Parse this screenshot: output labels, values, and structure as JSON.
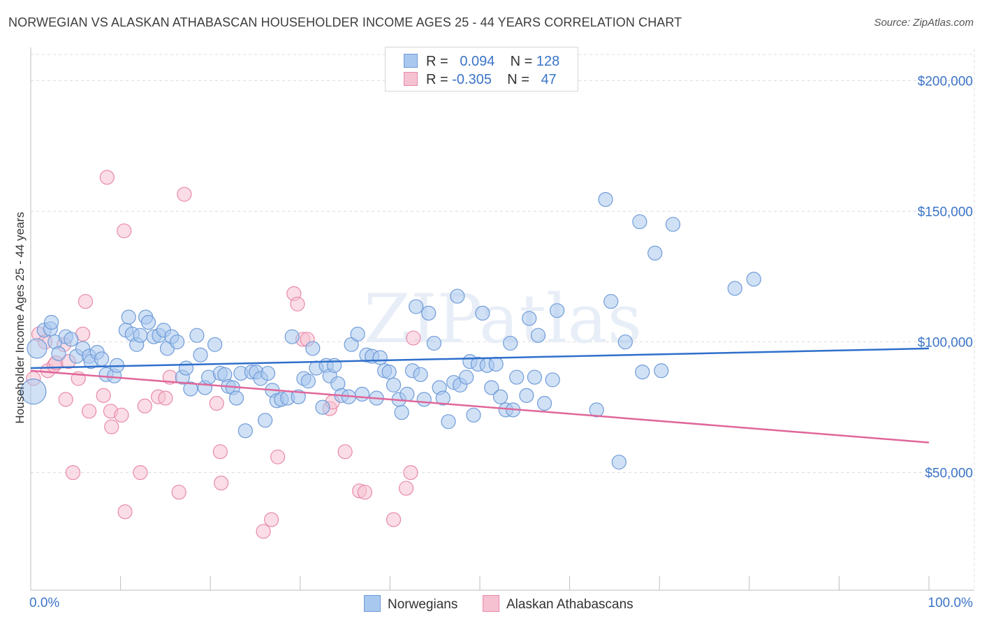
{
  "header": {
    "title": "NORWEGIAN VS ALASKAN ATHABASCAN HOUSEHOLDER INCOME AGES 25 - 44 YEARS CORRELATION CHART",
    "source": "Source: ZipAtlas.com"
  },
  "watermark": "ZIPatlas",
  "colors": {
    "blue_fill": "#a9c8ef",
    "blue_stroke": "#6f9bd8",
    "blue_line": "#2f6fcb",
    "pink_fill": "#f6c1d1",
    "pink_stroke": "#e88aa8",
    "pink_line": "#e0679a",
    "tick_text": "#3b74c8"
  },
  "legend": {
    "rows": [
      {
        "r_label": "R =",
        "r_value": "0.094",
        "n_label": "N =",
        "n_value": "128"
      },
      {
        "r_label": "R =",
        "r_value": "-0.305",
        "n_label": "N =",
        "n_value": "47"
      }
    ]
  },
  "bottom_legend": {
    "items": [
      "Norwegians",
      "Alaskan Athabascans"
    ]
  },
  "chart_data": {
    "type": "scatter",
    "title": "NORWEGIAN VS ALASKAN ATHABASCAN HOUSEHOLDER INCOME AGES 25 - 44 YEARS CORRELATION CHART",
    "xlabel": "",
    "ylabel": "Householder Income Ages 25 - 44 years",
    "xlim": [
      0,
      100
    ],
    "ylim": [
      5000,
      210000
    ],
    "x_tick_labels": [
      "0.0%",
      "100.0%"
    ],
    "y_ticks": [
      50000,
      100000,
      150000,
      200000
    ],
    "y_tick_labels": [
      "$50,000",
      "$100,000",
      "$150,000",
      "$200,000"
    ],
    "grid": true,
    "legend_position": "top-center",
    "series": [
      {
        "name": "Norwegians",
        "r": 0.094,
        "n": 128,
        "trend": {
          "x": [
            0,
            100
          ],
          "y": [
            90000,
            97500
          ]
        },
        "points": [
          [
            0.3,
            81000
          ],
          [
            0.7,
            97500
          ],
          [
            1.5,
            104500
          ],
          [
            2.2,
            105000
          ],
          [
            2.3,
            107500
          ],
          [
            2.7,
            100000
          ],
          [
            3.1,
            95500
          ],
          [
            3.9,
            102000
          ],
          [
            4.5,
            101000
          ],
          [
            5.1,
            94500
          ],
          [
            5.8,
            97500
          ],
          [
            6.5,
            94500
          ],
          [
            6.7,
            92500
          ],
          [
            7.4,
            96000
          ],
          [
            7.9,
            93500
          ],
          [
            8.4,
            87500
          ],
          [
            9.3,
            87000
          ],
          [
            9.6,
            91000
          ],
          [
            10.6,
            104500
          ],
          [
            10.9,
            109500
          ],
          [
            11.3,
            103000
          ],
          [
            11.8,
            99000
          ],
          [
            12.2,
            102500
          ],
          [
            12.8,
            109500
          ],
          [
            13.1,
            107500
          ],
          [
            13.7,
            102000
          ],
          [
            14.3,
            102500
          ],
          [
            14.8,
            104500
          ],
          [
            15.2,
            97500
          ],
          [
            15.7,
            102000
          ],
          [
            16.3,
            100000
          ],
          [
            16.9,
            86500
          ],
          [
            17.3,
            90000
          ],
          [
            17.8,
            82000
          ],
          [
            18.5,
            102500
          ],
          [
            18.9,
            95000
          ],
          [
            19.4,
            82500
          ],
          [
            19.8,
            86500
          ],
          [
            20.5,
            99000
          ],
          [
            21.1,
            88000
          ],
          [
            21.6,
            87500
          ],
          [
            22.0,
            83000
          ],
          [
            22.5,
            82500
          ],
          [
            22.9,
            78500
          ],
          [
            23.4,
            88000
          ],
          [
            23.9,
            66000
          ],
          [
            24.6,
            88500
          ],
          [
            25.1,
            88500
          ],
          [
            25.6,
            86000
          ],
          [
            26.1,
            70000
          ],
          [
            26.4,
            88000
          ],
          [
            26.9,
            81500
          ],
          [
            27.4,
            77500
          ],
          [
            27.9,
            78000
          ],
          [
            28.6,
            78500
          ],
          [
            29.1,
            102000
          ],
          [
            29.8,
            79000
          ],
          [
            30.4,
            86000
          ],
          [
            30.9,
            85000
          ],
          [
            31.4,
            97500
          ],
          [
            31.8,
            90000
          ],
          [
            32.5,
            75000
          ],
          [
            32.9,
            91000
          ],
          [
            33.3,
            87000
          ],
          [
            33.8,
            91000
          ],
          [
            34.2,
            84000
          ],
          [
            34.6,
            79500
          ],
          [
            35.4,
            79000
          ],
          [
            35.7,
            99000
          ],
          [
            36.4,
            103000
          ],
          [
            36.9,
            80000
          ],
          [
            37.4,
            95000
          ],
          [
            38.0,
            94500
          ],
          [
            38.5,
            78500
          ],
          [
            38.9,
            94000
          ],
          [
            39.4,
            89000
          ],
          [
            39.9,
            88500
          ],
          [
            40.4,
            83500
          ],
          [
            41.0,
            78000
          ],
          [
            41.3,
            73000
          ],
          [
            41.9,
            80000
          ],
          [
            42.5,
            89000
          ],
          [
            42.9,
            113500
          ],
          [
            43.4,
            87500
          ],
          [
            43.8,
            78000
          ],
          [
            44.3,
            111000
          ],
          [
            44.9,
            99500
          ],
          [
            45.5,
            82500
          ],
          [
            45.9,
            78500
          ],
          [
            46.5,
            69500
          ],
          [
            47.1,
            84500
          ],
          [
            47.5,
            117500
          ],
          [
            47.8,
            83500
          ],
          [
            48.5,
            86500
          ],
          [
            48.9,
            92500
          ],
          [
            49.3,
            72000
          ],
          [
            49.8,
            91500
          ],
          [
            50.3,
            111000
          ],
          [
            50.8,
            91000
          ],
          [
            51.3,
            82500
          ],
          [
            51.8,
            91500
          ],
          [
            52.3,
            79000
          ],
          [
            52.9,
            74000
          ],
          [
            53.4,
            99500
          ],
          [
            53.7,
            74000
          ],
          [
            54.1,
            86500
          ],
          [
            55.2,
            79500
          ],
          [
            55.5,
            109000
          ],
          [
            56.1,
            86500
          ],
          [
            56.5,
            102500
          ],
          [
            57.2,
            76500
          ],
          [
            58.1,
            85500
          ],
          [
            58.6,
            112000
          ],
          [
            63.0,
            74000
          ],
          [
            64.0,
            154500
          ],
          [
            64.6,
            115500
          ],
          [
            65.5,
            54000
          ],
          [
            66.2,
            100000
          ],
          [
            67.8,
            146000
          ],
          [
            68.1,
            88500
          ],
          [
            69.5,
            134000
          ],
          [
            70.2,
            89000
          ],
          [
            71.5,
            145000
          ],
          [
            78.4,
            120500
          ],
          [
            80.5,
            124000
          ]
        ]
      },
      {
        "name": "Alaskan Athabascans",
        "r": -0.305,
        "n": 47,
        "trend": {
          "x": [
            0,
            100
          ],
          "y": [
            89000,
            61500
          ]
        },
        "points": [
          [
            0.3,
            86000
          ],
          [
            0.9,
            103000
          ],
          [
            1.6,
            100000
          ],
          [
            1.9,
            89000
          ],
          [
            2.6,
            91000
          ],
          [
            2.8,
            92000
          ],
          [
            3.7,
            99000
          ],
          [
            3.9,
            78000
          ],
          [
            4.2,
            92500
          ],
          [
            4.7,
            50000
          ],
          [
            5.3,
            86000
          ],
          [
            5.8,
            103000
          ],
          [
            6.1,
            115500
          ],
          [
            6.5,
            73500
          ],
          [
            8.1,
            79500
          ],
          [
            8.5,
            163000
          ],
          [
            8.9,
            73500
          ],
          [
            9.0,
            67500
          ],
          [
            10.1,
            72000
          ],
          [
            10.4,
            142500
          ],
          [
            10.5,
            35000
          ],
          [
            12.2,
            50000
          ],
          [
            12.7,
            75500
          ],
          [
            14.2,
            79000
          ],
          [
            15.0,
            78500
          ],
          [
            15.5,
            86500
          ],
          [
            16.5,
            42500
          ],
          [
            17.1,
            156500
          ],
          [
            20.7,
            76500
          ],
          [
            21.1,
            58000
          ],
          [
            21.2,
            46000
          ],
          [
            25.9,
            27500
          ],
          [
            26.8,
            32000
          ],
          [
            27.5,
            56000
          ],
          [
            29.3,
            118500
          ],
          [
            29.7,
            114500
          ],
          [
            30.3,
            101000
          ],
          [
            30.8,
            101000
          ],
          [
            33.3,
            74500
          ],
          [
            33.6,
            77000
          ],
          [
            35.0,
            58000
          ],
          [
            36.6,
            43000
          ],
          [
            37.2,
            42500
          ],
          [
            40.4,
            32000
          ],
          [
            41.8,
            44000
          ],
          [
            42.3,
            50000
          ],
          [
            42.6,
            101500
          ]
        ]
      }
    ]
  }
}
